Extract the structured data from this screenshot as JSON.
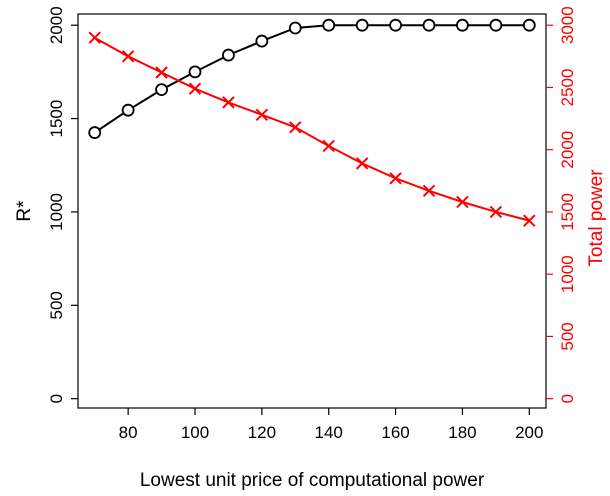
{
  "chart_data": {
    "type": "line",
    "title": "",
    "xlabel": "Lowest unit price of computational power",
    "ylabel_left": "R*",
    "ylabel_right": "Total power",
    "x": [
      70,
      80,
      90,
      100,
      110,
      120,
      130,
      140,
      150,
      160,
      170,
      180,
      190,
      200
    ],
    "x_ticks": [
      80,
      100,
      120,
      140,
      160,
      180,
      200
    ],
    "xlim": [
      65,
      205
    ],
    "y_left_ticks": [
      0,
      500,
      1000,
      1500,
      2000
    ],
    "y_left_lim": [
      -50,
      2060
    ],
    "y_right_ticks": [
      0,
      500,
      1000,
      1500,
      2000,
      2500,
      3000
    ],
    "y_right_lim": [
      -75,
      3090
    ],
    "grid": false,
    "series": [
      {
        "axis": "left",
        "color": "#000000",
        "marker": "circle",
        "values": [
          1425,
          1545,
          1655,
          1750,
          1840,
          1915,
          1985,
          2000,
          2000,
          2000,
          2000,
          2000,
          2000,
          2000
        ]
      },
      {
        "axis": "right",
        "color": "#ff0000",
        "marker": "cross",
        "values": [
          2900,
          2750,
          2620,
          2490,
          2380,
          2280,
          2180,
          2030,
          1890,
          1770,
          1670,
          1580,
          1500,
          1430
        ]
      }
    ]
  }
}
